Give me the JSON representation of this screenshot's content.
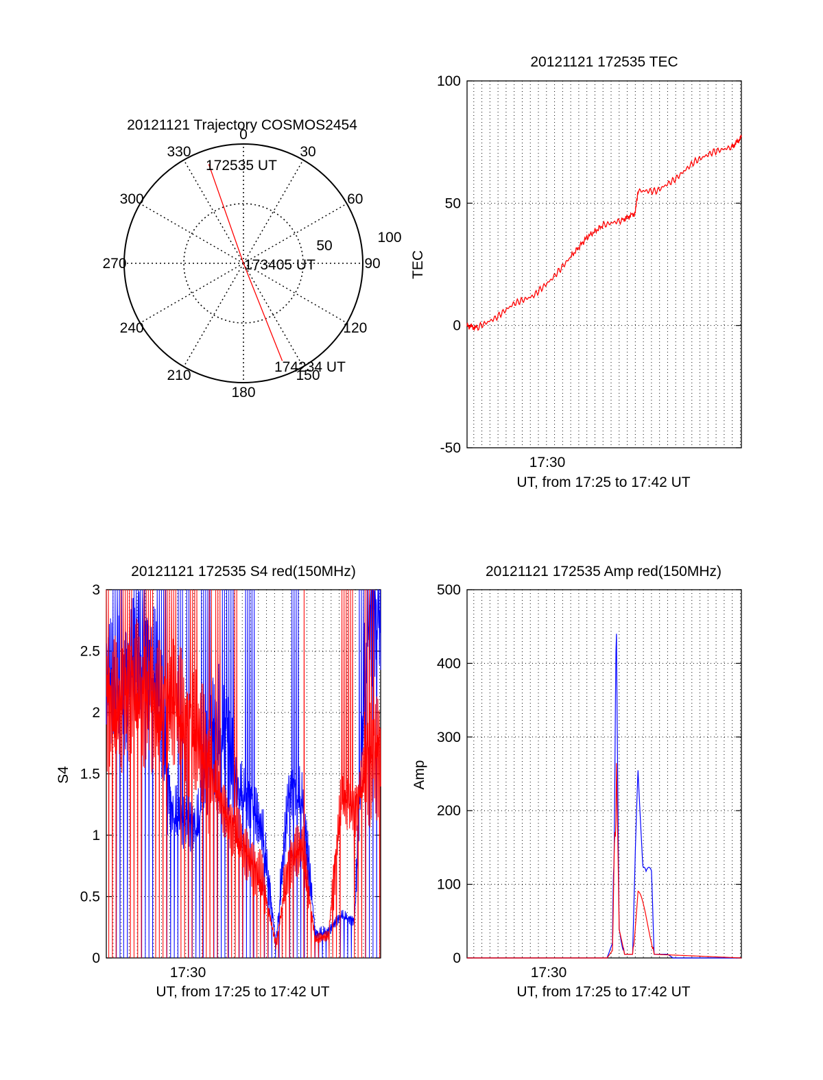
{
  "chart_data": [
    {
      "id": "polar",
      "type": "polar-trajectory",
      "title": "20121121 Trajectory COSMOS2454",
      "azimuth_labels": [
        {
          "az": 0,
          "text": "0"
        },
        {
          "az": 30,
          "text": "30"
        },
        {
          "az": 60,
          "text": "60"
        },
        {
          "az": 90,
          "text": "90"
        },
        {
          "az": 120,
          "text": "120"
        },
        {
          "az": 150,
          "text": "150"
        },
        {
          "az": 180,
          "text": "180"
        },
        {
          "az": 210,
          "text": "210"
        },
        {
          "az": 240,
          "text": "240"
        },
        {
          "az": 270,
          "text": "270"
        },
        {
          "az": 300,
          "text": "300"
        },
        {
          "az": 330,
          "text": "330"
        }
      ],
      "ring_labels": [
        "50",
        "100"
      ],
      "trajectory": {
        "color": "#ff0000",
        "points": [
          {
            "az": 340.7,
            "r": 88
          },
          {
            "az": 0,
            "r": 0
          },
          {
            "az": 158.3,
            "r": 88
          }
        ],
        "labels": [
          "172535 UT",
          "173405 UT",
          "174234 UT"
        ]
      }
    },
    {
      "id": "tec",
      "type": "line",
      "title": "20121121 172535 TEC",
      "xlabel": "UT, from 17:25 to 17:42 UT",
      "ylabel": "TEC",
      "xlim": [
        "17:25:35",
        "17:42:34"
      ],
      "ylim": [
        -50,
        100
      ],
      "yticks": [
        "-50",
        "0",
        "50",
        "100"
      ],
      "xtick_label": "17:30",
      "grid": true,
      "series": [
        {
          "color": "#ff0000",
          "x": [
            "17:25:35",
            "17:26:10",
            "17:27:20",
            "17:28:30",
            "17:29:40",
            "17:30:50",
            "17:32:00",
            "17:33:00",
            "17:34:00",
            "17:35:10",
            "17:36:00",
            "17:36:10",
            "17:37:20",
            "17:38:30",
            "17:39:40",
            "17:40:50",
            "17:42:00",
            "17:42:34"
          ],
          "y": [
            0,
            -1,
            3,
            9,
            12,
            19,
            28,
            36,
            41,
            43,
            46,
            55,
            55,
            60,
            67,
            71,
            73,
            77
          ]
        }
      ]
    },
    {
      "id": "s4",
      "type": "line",
      "title": "20121121 172535 S4 red(150MHz)",
      "xlabel": "UT, from 17:25 to 17:42 UT",
      "ylabel": "S4",
      "xlim": [
        "17:25:35",
        "17:42:34"
      ],
      "ylim": [
        0,
        3
      ],
      "yticks": [
        "0",
        "0.5",
        "1",
        "1.5",
        "2",
        "2.5",
        "3"
      ],
      "xtick_label": "17:30",
      "grid": true,
      "series": [
        {
          "color": "#0000ff",
          "y": [
            2.3,
            2.2,
            2.4,
            2.5,
            2.2,
            1.2,
            1.1,
            1.1,
            1.8,
            1.9,
            1.4,
            1.3,
            1.0,
            0.12,
            1.4,
            1.3,
            0.2,
            0.22,
            0.35,
            0.3,
            2.8,
            2.8
          ]
        },
        {
          "color": "#ff0000",
          "y": [
            2.1,
            2.0,
            2.2,
            2.1,
            2.0,
            2.1,
            1.9,
            1.8,
            1.5,
            1.2,
            1.0,
            0.8,
            0.6,
            0.1,
            0.8,
            0.9,
            0.15,
            0.18,
            1.3,
            1.2,
            1.6,
            1.7
          ]
        }
      ]
    },
    {
      "id": "amp",
      "type": "line",
      "title": "20121121 172535 Amp red(150MHz)",
      "xlabel": "UT, from 17:25 to 17:42 UT",
      "ylabel": "Amp",
      "xlim": [
        "17:25:35",
        "17:42:34"
      ],
      "ylim": [
        0,
        500
      ],
      "yticks": [
        "0",
        "100",
        "200",
        "300",
        "400",
        "500"
      ],
      "xtick_label": "17:30",
      "grid": true,
      "series": [
        {
          "color": "#0000ff",
          "x": [
            "17:25:35",
            "17:30:00",
            "17:34:15",
            "17:34:35",
            "17:34:50",
            "17:35:00",
            "17:35:20",
            "17:35:50",
            "17:36:10",
            "17:36:40",
            "17:37:00",
            "17:37:10",
            "17:37:40",
            "17:38:00",
            "17:38:20",
            "17:42:34"
          ],
          "y": [
            0,
            0,
            0,
            20,
            475,
            50,
            5,
            5,
            290,
            150,
            120,
            5,
            5,
            5,
            0,
            0
          ]
        },
        {
          "color": "#ff0000",
          "x": [
            "17:25:35",
            "17:34:15",
            "17:34:35",
            "17:34:50",
            "17:35:00",
            "17:35:20",
            "17:35:50",
            "17:36:10",
            "17:36:40",
            "17:37:00",
            "17:37:10",
            "17:42:34"
          ],
          "y": [
            0,
            0,
            10,
            310,
            40,
            5,
            5,
            100,
            60,
            30,
            5,
            0
          ]
        }
      ]
    }
  ]
}
